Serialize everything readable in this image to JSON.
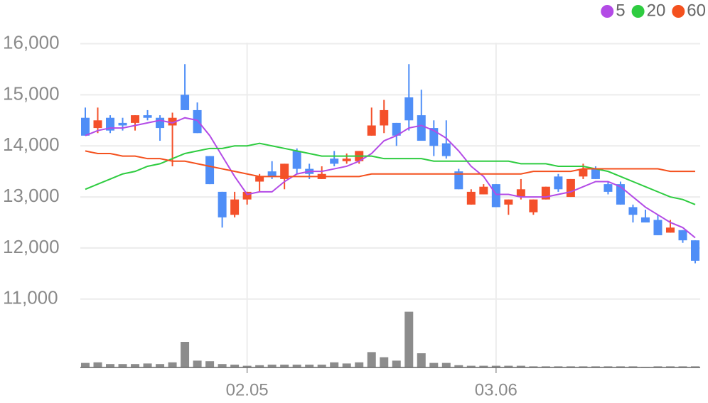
{
  "chart_data": {
    "type": "candlestick",
    "categories": [
      null,
      null,
      null,
      null,
      null,
      null,
      null,
      null,
      null,
      null,
      null,
      null,
      null,
      "02.05",
      null,
      null,
      null,
      null,
      null,
      null,
      null,
      null,
      null,
      null,
      null,
      null,
      null,
      null,
      null,
      null,
      null,
      null,
      null,
      "03.06",
      null,
      null,
      null,
      null,
      null,
      null,
      null,
      null,
      null,
      null,
      null,
      null,
      null,
      null,
      null,
      null
    ],
    "open": [
      14550,
      14350,
      14550,
      14450,
      14450,
      14600,
      14550,
      14400,
      15000,
      14700,
      13800,
      13100,
      12650,
      12950,
      13300,
      13500,
      13350,
      13900,
      13550,
      13350,
      13750,
      13700,
      13700,
      14200,
      14400,
      14450,
      14950,
      14600,
      14350,
      14050,
      13500,
      12850,
      13050,
      13250,
      12850,
      13000,
      12700,
      12950,
      13400,
      13000,
      13400,
      13550,
      13250,
      13250,
      12800,
      12600,
      12550,
      12300,
      12350,
      12150
    ],
    "high": [
      14750,
      14750,
      14600,
      14550,
      14600,
      14700,
      14600,
      14650,
      15600,
      14850,
      13800,
      13100,
      13100,
      13100,
      13450,
      13700,
      13650,
      13950,
      13650,
      13600,
      13900,
      13850,
      13900,
      14750,
      14900,
      14450,
      15600,
      15100,
      14500,
      14500,
      13550,
      13150,
      13250,
      13250,
      12950,
      13350,
      12950,
      13200,
      13450,
      13350,
      13650,
      13600,
      13300,
      13300,
      12850,
      12750,
      12650,
      12550,
      12350,
      12150
    ],
    "low": [
      14200,
      14250,
      14250,
      14300,
      14300,
      14500,
      14100,
      13600,
      14700,
      14250,
      13250,
      12400,
      12600,
      12850,
      13100,
      13350,
      13150,
      13450,
      13350,
      13350,
      13600,
      13650,
      13650,
      14200,
      14250,
      14000,
      14300,
      14100,
      13800,
      13750,
      13150,
      12850,
      13050,
      12800,
      12650,
      12950,
      12650,
      12950,
      13100,
      13000,
      13350,
      13350,
      13050,
      12850,
      12500,
      12500,
      12250,
      12300,
      12100,
      11700
    ],
    "close": [
      14200,
      14500,
      14300,
      14400,
      14600,
      14550,
      14350,
      14550,
      14700,
      14250,
      13250,
      12600,
      12950,
      13100,
      13400,
      13400,
      13650,
      13550,
      13450,
      13450,
      13650,
      13750,
      13900,
      14400,
      14700,
      14200,
      14500,
      14100,
      14000,
      13800,
      13150,
      13100,
      13200,
      12800,
      12950,
      13150,
      12950,
      13200,
      13150,
      13350,
      13550,
      13350,
      13100,
      12850,
      12650,
      12500,
      12250,
      12400,
      12150,
      11750
    ],
    "up_color": "#f4502a",
    "down_color": "#4f8ef7",
    "series": [
      {
        "name": "5",
        "color": "#b34be6",
        "values": [
          14200,
          14300,
          14350,
          14350,
          14400,
          14450,
          14500,
          14450,
          14550,
          14500,
          14200,
          13800,
          13400,
          13050,
          13100,
          13100,
          13300,
          13450,
          13500,
          13500,
          13550,
          13600,
          13700,
          13850,
          14100,
          14200,
          14350,
          14400,
          14300,
          14150,
          13900,
          13600,
          13400,
          13050,
          13050,
          13000,
          13000,
          13000,
          13050,
          13100,
          13200,
          13300,
          13300,
          13200,
          13000,
          12800,
          12650,
          12500,
          12400,
          12200
        ]
      },
      {
        "name": "20",
        "color": "#2ecc40",
        "values": [
          13150,
          13250,
          13350,
          13450,
          13500,
          13600,
          13650,
          13750,
          13850,
          13900,
          13950,
          13950,
          14000,
          14000,
          14050,
          14000,
          13950,
          13900,
          13850,
          13800,
          13800,
          13800,
          13800,
          13800,
          13750,
          13750,
          13750,
          13750,
          13700,
          13700,
          13700,
          13700,
          13700,
          13700,
          13700,
          13650,
          13650,
          13650,
          13600,
          13600,
          13600,
          13550,
          13500,
          13400,
          13300,
          13200,
          13100,
          13000,
          12950,
          12850
        ]
      },
      {
        "name": "60",
        "color": "#f4511e",
        "values": [
          13900,
          13850,
          13850,
          13800,
          13800,
          13750,
          13750,
          13700,
          13700,
          13650,
          13600,
          13550,
          13500,
          13450,
          13400,
          13400,
          13400,
          13400,
          13400,
          13400,
          13400,
          13400,
          13400,
          13450,
          13450,
          13450,
          13450,
          13450,
          13450,
          13450,
          13450,
          13450,
          13450,
          13450,
          13450,
          13450,
          13500,
          13500,
          13500,
          13500,
          13550,
          13550,
          13550,
          13550,
          13550,
          13550,
          13550,
          13500,
          13500,
          13500
        ]
      }
    ],
    "volume": {
      "color": "#8c8c8c",
      "ylim": [
        0,
        100
      ],
      "values": [
        8,
        9,
        6,
        6,
        6,
        7,
        6,
        9,
        45,
        12,
        11,
        6,
        5,
        3,
        4,
        5,
        5,
        5,
        5,
        5,
        9,
        7,
        9,
        27,
        18,
        12,
        98,
        25,
        8,
        8,
        4,
        3,
        3,
        3,
        3,
        3,
        2,
        2,
        2,
        2,
        2,
        2,
        2,
        2,
        2,
        1,
        2,
        2,
        2,
        2
      ]
    },
    "ylim": [
      9660,
      16300
    ],
    "yticks": [
      {
        "value": 11000,
        "label": "11,000"
      },
      {
        "value": 12000,
        "label": "12,000"
      },
      {
        "value": 13000,
        "label": "13,000"
      },
      {
        "value": 14000,
        "label": "14,000"
      },
      {
        "value": 15000,
        "label": "15,000"
      },
      {
        "value": 16000,
        "label": "16,000"
      }
    ],
    "grid": true
  }
}
